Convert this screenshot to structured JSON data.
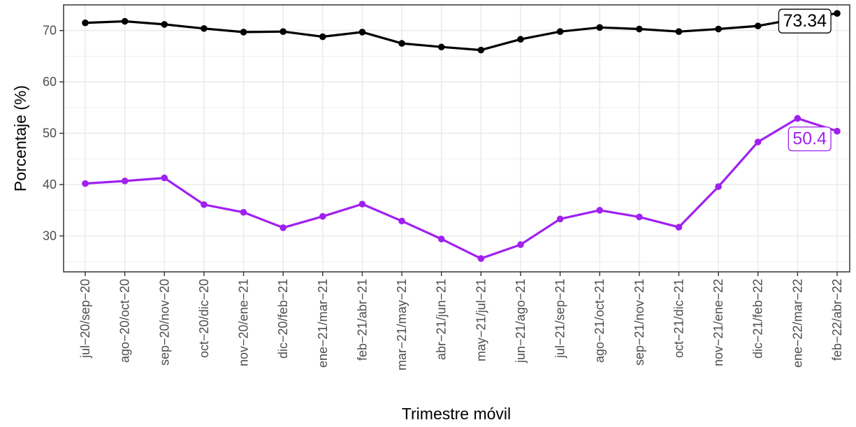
{
  "chart_data": {
    "type": "line",
    "title": "",
    "xlabel": "Trimestre móvil",
    "ylabel": "Porcentaje (%)",
    "categories": [
      "jul−20/sep−20",
      "ago−20/oct−20",
      "sep−20/nov−20",
      "oct−20/dic−20",
      "nov−20/ene−21",
      "dic−20/feb−21",
      "ene−21/mar−21",
      "feb−21/abr−21",
      "mar−21/may−21",
      "abr−21/jun−21",
      "may−21/jul−21",
      "jun−21/ago−21",
      "jul−21/sep−21",
      "ago−21/oct−21",
      "sep−21/nov−21",
      "oct−21/dic−21",
      "nov−21/ene−22",
      "dic−21/feb−22",
      "ene−22/mar−22",
      "feb−22/abr−22"
    ],
    "ylim": [
      23,
      75
    ],
    "yticks": [
      30,
      40,
      50,
      60,
      70
    ],
    "grid": true,
    "legend": "none",
    "series": [
      {
        "color": "#000000",
        "values": [
          71.5,
          71.8,
          71.2,
          70.4,
          69.7,
          69.8,
          68.8,
          69.7,
          67.5,
          66.8,
          66.2,
          68.3,
          69.8,
          70.6,
          70.3,
          69.8,
          70.3,
          70.9,
          72.3,
          73.34
        ],
        "end_label": "73.34"
      },
      {
        "color": "#a020f0",
        "values": [
          40.2,
          40.7,
          41.3,
          36.1,
          34.6,
          31.6,
          33.8,
          36.2,
          32.9,
          29.4,
          25.6,
          28.3,
          33.3,
          35.0,
          33.7,
          31.7,
          39.6,
          48.3,
          52.9,
          50.4
        ],
        "end_label": "50.4"
      }
    ]
  }
}
